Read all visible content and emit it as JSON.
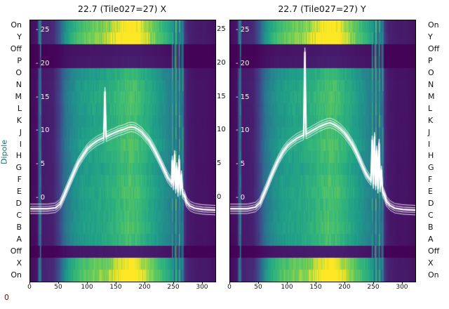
{
  "page": {
    "title_left": "22.7 (Tile027=27) X",
    "title_right": "22.7 (Tile027=27) Y",
    "ylabel": "Dipole",
    "corner_label": "0"
  },
  "axes": {
    "row_labels": [
      "On",
      "Y",
      "Off",
      "P",
      "O",
      "N",
      "M",
      "L",
      "K",
      "J",
      "I",
      "H",
      "G",
      "F",
      "E",
      "D",
      "C",
      "B",
      "A",
      "Off",
      "X",
      "On"
    ],
    "x_ticks": [
      0,
      50,
      100,
      150,
      200,
      250,
      300
    ],
    "inner_tick_labels": [
      "- 25",
      "- 20",
      "- 15",
      "- 10",
      "- 5",
      "- 0"
    ],
    "inner_tick_values": [
      25,
      20,
      15,
      10,
      5,
      0
    ],
    "right_tick_labels": [
      "25",
      "20",
      "15",
      "10",
      "5",
      "0"
    ],
    "right_tick_values": [
      25,
      20,
      15,
      10,
      5,
      0
    ]
  },
  "colors": {
    "text": "#111111",
    "ylabel": "#1d6a64",
    "corner": "#a00000",
    "curve": "#ffffff",
    "background": "#ffffff"
  },
  "chart_data": {
    "type": "heatmap",
    "title_left": "22.7 (Tile027=27) X",
    "title_right": "22.7 (Tile027=27) Y",
    "x_range": [
      0,
      322
    ],
    "db_axis": {
      "min": 0,
      "max": 25,
      "unit": "dB"
    },
    "colormap": "viridis",
    "colormap_anchors": [
      [
        0.0,
        [
          68,
          1,
          84
        ]
      ],
      [
        0.125,
        [
          72,
          40,
          120
        ]
      ],
      [
        0.25,
        [
          62,
          74,
          137
        ]
      ],
      [
        0.375,
        [
          49,
          104,
          142
        ]
      ],
      [
        0.5,
        [
          38,
          130,
          142
        ]
      ],
      [
        0.625,
        [
          31,
          158,
          137
        ]
      ],
      [
        0.75,
        [
          53,
          183,
          121
        ]
      ],
      [
        0.875,
        [
          109,
          205,
          89
        ]
      ],
      [
        1.0,
        [
          253,
          231,
          37
        ]
      ]
    ],
    "column_profile": [
      [
        0,
        0.03
      ],
      [
        12,
        0.05
      ],
      [
        16,
        0.4
      ],
      [
        20,
        0.08
      ],
      [
        40,
        0.1
      ],
      [
        50,
        0.22
      ],
      [
        60,
        0.42
      ],
      [
        70,
        0.52
      ],
      [
        85,
        0.6
      ],
      [
        100,
        0.64
      ],
      [
        115,
        0.66
      ],
      [
        130,
        0.68
      ],
      [
        145,
        0.72
      ],
      [
        160,
        0.77
      ],
      [
        172,
        0.8
      ],
      [
        185,
        0.78
      ],
      [
        200,
        0.71
      ],
      [
        212,
        0.66
      ],
      [
        222,
        0.61
      ],
      [
        232,
        0.56
      ],
      [
        242,
        0.5
      ],
      [
        250,
        0.44
      ],
      [
        258,
        0.46
      ],
      [
        264,
        0.34
      ],
      [
        268,
        0.14
      ],
      [
        274,
        0.08
      ],
      [
        290,
        0.06
      ],
      [
        305,
        0.06
      ],
      [
        322,
        0.04
      ]
    ],
    "row_multipliers": [
      1.3,
      1.35,
      0.1,
      0.12,
      0.95,
      1.0,
      1.02,
      1.0,
      0.98,
      1.0,
      1.03,
      1.0,
      0.97,
      1.0,
      1.02,
      0.99,
      1.0,
      1.01,
      0.98,
      0.12,
      1.28,
      1.33
    ],
    "noise_lines": [
      {
        "x": 17,
        "v": 0.45
      },
      {
        "x": 246,
        "v": 0.62
      },
      {
        "x": 250,
        "v": 0.4
      },
      {
        "x": 253,
        "v": 0.72
      },
      {
        "x": 256,
        "v": 0.35
      },
      {
        "x": 259,
        "v": 0.66
      },
      {
        "x": 262,
        "v": 0.45
      },
      {
        "x": 265,
        "v": 0.58
      }
    ],
    "bundle_offsets": [
      [
        0,
        2.4
      ],
      [
        0.35,
        1.1
      ],
      [
        -0.35,
        1.1
      ],
      [
        0.7,
        1.0
      ],
      [
        -0.7,
        1.0
      ]
    ],
    "panels": [
      {
        "title": "22.7 (Tile027=27) X",
        "curve_db": [
          [
            0,
            -1.6
          ],
          [
            30,
            -1.6
          ],
          [
            44,
            -1.45
          ],
          [
            52,
            -0.9
          ],
          [
            58,
            0.2
          ],
          [
            64,
            1.4
          ],
          [
            70,
            2.6
          ],
          [
            77,
            4.0
          ],
          [
            84,
            5.3
          ],
          [
            92,
            6.4
          ],
          [
            100,
            7.4
          ],
          [
            108,
            8.0
          ],
          [
            116,
            8.5
          ],
          [
            123,
            8.8
          ],
          [
            128,
            9.0
          ],
          [
            130,
            15.8
          ],
          [
            132,
            9.1
          ],
          [
            138,
            9.4
          ],
          [
            146,
            9.7
          ],
          [
            154,
            10.0
          ],
          [
            162,
            10.2
          ],
          [
            170,
            10.5
          ],
          [
            176,
            10.6
          ],
          [
            182,
            10.5
          ],
          [
            188,
            10.2
          ],
          [
            194,
            9.8
          ],
          [
            200,
            9.2
          ],
          [
            207,
            8.5
          ],
          [
            214,
            7.5
          ],
          [
            220,
            6.5
          ],
          [
            227,
            5.3
          ],
          [
            233,
            4.2
          ],
          [
            239,
            3.1
          ],
          [
            244,
            2.5
          ],
          [
            246,
            2.3
          ],
          [
            247,
            5.6
          ],
          [
            249,
            1.9
          ],
          [
            251,
            6.4
          ],
          [
            253,
            1.4
          ],
          [
            255,
            4.6
          ],
          [
            257,
            0.9
          ],
          [
            259,
            5.7
          ],
          [
            261,
            1.1
          ],
          [
            263,
            3.4
          ],
          [
            265,
            0.7
          ],
          [
            268,
            0.4
          ],
          [
            272,
            -0.6
          ],
          [
            278,
            -1.2
          ],
          [
            286,
            -1.5
          ],
          [
            300,
            -1.7
          ],
          [
            322,
            -1.8
          ]
        ]
      },
      {
        "title": "22.7 (Tile027=27) Y",
        "curve_db": [
          [
            0,
            -1.6
          ],
          [
            30,
            -1.6
          ],
          [
            44,
            -1.35
          ],
          [
            52,
            -0.7
          ],
          [
            58,
            0.5
          ],
          [
            64,
            1.7
          ],
          [
            70,
            3.0
          ],
          [
            77,
            4.4
          ],
          [
            84,
            5.7
          ],
          [
            92,
            6.9
          ],
          [
            100,
            7.8
          ],
          [
            108,
            8.4
          ],
          [
            116,
            8.9
          ],
          [
            123,
            9.2
          ],
          [
            128,
            9.4
          ],
          [
            130,
            21.7
          ],
          [
            132,
            9.5
          ],
          [
            138,
            9.8
          ],
          [
            146,
            10.2
          ],
          [
            154,
            10.6
          ],
          [
            162,
            10.9
          ],
          [
            168,
            11.1
          ],
          [
            174,
            11.2
          ],
          [
            180,
            11.0
          ],
          [
            186,
            10.7
          ],
          [
            192,
            10.3
          ],
          [
            198,
            9.8
          ],
          [
            205,
            9.0
          ],
          [
            212,
            8.1
          ],
          [
            218,
            7.1
          ],
          [
            225,
            5.8
          ],
          [
            231,
            4.6
          ],
          [
            237,
            3.5
          ],
          [
            242,
            2.9
          ],
          [
            245,
            2.6
          ],
          [
            247,
            8.6
          ],
          [
            249,
            2.1
          ],
          [
            251,
            9.1
          ],
          [
            253,
            1.9
          ],
          [
            255,
            7.1
          ],
          [
            257,
            1.4
          ],
          [
            259,
            8.1
          ],
          [
            261,
            1.6
          ],
          [
            263,
            4.1
          ],
          [
            265,
            1.0
          ],
          [
            268,
            0.5
          ],
          [
            272,
            -0.5
          ],
          [
            278,
            -1.1
          ],
          [
            286,
            -1.5
          ],
          [
            300,
            -1.7
          ],
          [
            322,
            -1.8
          ]
        ]
      }
    ]
  }
}
